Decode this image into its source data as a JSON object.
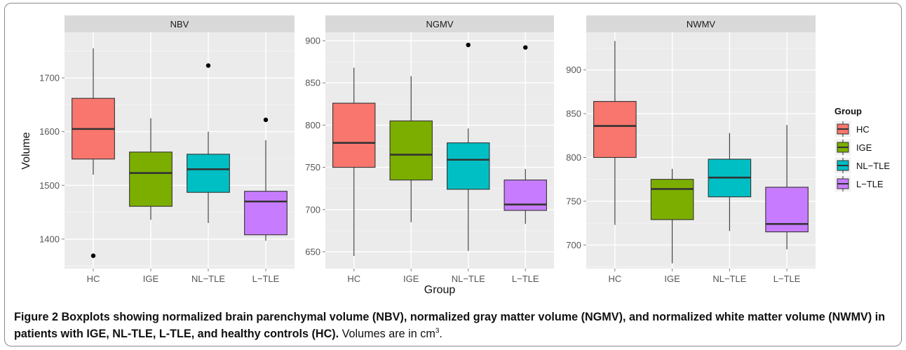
{
  "chart_data": {
    "type": "boxplot",
    "xlabel": "Group",
    "ylabel": "Volume",
    "categories": [
      "HC",
      "IGE",
      "NL−TLE",
      "L−TLE"
    ],
    "colors": [
      "#F8766D",
      "#7CAE00",
      "#00BFC4",
      "#C77CFF"
    ],
    "legend": {
      "title": "Group",
      "entries": [
        "HC",
        "IGE",
        "NL−TLE",
        "L−TLE"
      ],
      "placement": "right"
    },
    "grid": true,
    "panels": [
      {
        "title": "NBV",
        "ylim": [
          1345,
          1785
        ],
        "yticks": [
          1400,
          1500,
          1600,
          1700
        ],
        "boxes": [
          {
            "group": "HC",
            "whisker_low": 1520,
            "q1": 1549,
            "median": 1605,
            "q3": 1662,
            "whisker_high": 1755,
            "outliers": [
              1369
            ]
          },
          {
            "group": "IGE",
            "whisker_low": 1436,
            "q1": 1461,
            "median": 1523,
            "q3": 1562,
            "whisker_high": 1625,
            "outliers": []
          },
          {
            "group": "NL−TLE",
            "whisker_low": 1430,
            "q1": 1487,
            "median": 1530,
            "q3": 1558,
            "whisker_high": 1600,
            "outliers": [
              1723
            ]
          },
          {
            "group": "L−TLE",
            "whisker_low": 1397,
            "q1": 1408,
            "median": 1470,
            "q3": 1489,
            "whisker_high": 1584,
            "outliers": [
              1622
            ]
          }
        ]
      },
      {
        "title": "NGMV",
        "ylim": [
          630,
          910
        ],
        "yticks": [
          650,
          700,
          750,
          800,
          850,
          900
        ],
        "boxes": [
          {
            "group": "HC",
            "whisker_low": 645,
            "q1": 750,
            "median": 779,
            "q3": 826,
            "whisker_high": 868,
            "outliers": []
          },
          {
            "group": "IGE",
            "whisker_low": 685,
            "q1": 735,
            "median": 765,
            "q3": 805,
            "whisker_high": 858,
            "outliers": []
          },
          {
            "group": "NL−TLE",
            "whisker_low": 651,
            "q1": 724,
            "median": 759,
            "q3": 779,
            "whisker_high": 796,
            "outliers": [
              895
            ]
          },
          {
            "group": "L−TLE",
            "whisker_low": 683,
            "q1": 699,
            "median": 706,
            "q3": 735,
            "whisker_high": 748,
            "outliers": [
              892
            ]
          }
        ]
      },
      {
        "title": "NWMV",
        "ylim": [
          673,
          943
        ],
        "yticks": [
          700,
          750,
          800,
          850,
          900
        ],
        "boxes": [
          {
            "group": "HC",
            "whisker_low": 723,
            "q1": 800,
            "median": 836,
            "q3": 864,
            "whisker_high": 933,
            "outliers": []
          },
          {
            "group": "IGE",
            "whisker_low": 679,
            "q1": 729,
            "median": 764,
            "q3": 775,
            "whisker_high": 787,
            "outliers": []
          },
          {
            "group": "NL−TLE",
            "whisker_low": 716,
            "q1": 755,
            "median": 777,
            "q3": 798,
            "whisker_high": 828,
            "outliers": []
          },
          {
            "group": "L−TLE",
            "whisker_low": 695,
            "q1": 715,
            "median": 724,
            "q3": 766,
            "whisker_high": 837,
            "outliers": []
          }
        ]
      }
    ]
  },
  "caption": {
    "bold": "Figure 2 Boxplots showing normalized brain parenchymal volume (NBV), normalized gray matter volume (NGMV), and normalized white matter volume (NWMV) in patients with IGE, NL-TLE, L-TLE, and healthy controls (HC).",
    "normal": " Volumes are in cm",
    "superscript": "3",
    "end": "."
  }
}
